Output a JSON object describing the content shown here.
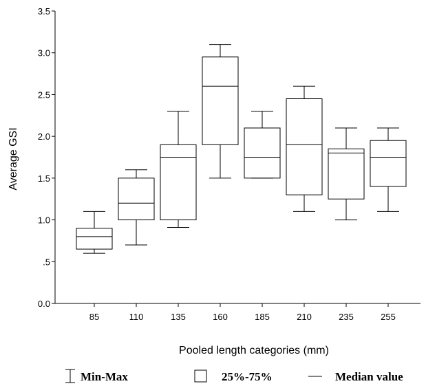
{
  "chart_data": {
    "type": "box",
    "xlabel": "Pooled length categories (mm)",
    "ylabel": "Average GSI",
    "ylim": [
      0,
      3.5
    ],
    "yticks": [
      {
        "value": 0.0,
        "label": "0.0"
      },
      {
        "value": 0.5,
        "label": ".5"
      },
      {
        "value": 1.0,
        "label": "1.0"
      },
      {
        "value": 1.5,
        "label": "1.5"
      },
      {
        "value": 2.0,
        "label": "2.0"
      },
      {
        "value": 2.5,
        "label": "2.5"
      },
      {
        "value": 3.0,
        "label": "3.0"
      },
      {
        "value": 3.5,
        "label": "3.5"
      }
    ],
    "categories": [
      "85",
      "110",
      "135",
      "160",
      "185",
      "210",
      "235",
      "255"
    ],
    "boxes": [
      {
        "category": "85",
        "min": 0.6,
        "q1": 0.65,
        "median": 0.8,
        "q3": 0.9,
        "max": 1.1
      },
      {
        "category": "110",
        "min": 0.7,
        "q1": 1.0,
        "median": 1.2,
        "q3": 1.5,
        "max": 1.6
      },
      {
        "category": "135",
        "min": 0.91,
        "q1": 1.0,
        "median": 1.75,
        "q3": 1.9,
        "max": 2.3
      },
      {
        "category": "160",
        "min": 1.5,
        "q1": 1.9,
        "median": 2.6,
        "q3": 2.95,
        "max": 3.1
      },
      {
        "category": "185",
        "min": 1.5,
        "q1": 1.5,
        "median": 1.75,
        "q3": 2.1,
        "max": 2.3
      },
      {
        "category": "210",
        "min": 1.1,
        "q1": 1.3,
        "median": 1.9,
        "q3": 2.45,
        "max": 2.6
      },
      {
        "category": "235",
        "min": 1.0,
        "q1": 1.25,
        "median": 1.8,
        "q3": 1.85,
        "max": 2.1
      },
      {
        "category": "255",
        "min": 1.1,
        "q1": 1.4,
        "median": 1.75,
        "q3": 1.95,
        "max": 2.1
      }
    ],
    "legend": {
      "placement": "bottom",
      "items": [
        {
          "symbol": "whisker",
          "label": "Min-Max"
        },
        {
          "symbol": "box",
          "label": "25%-75%"
        },
        {
          "symbol": "line",
          "label": "Median value"
        }
      ]
    },
    "grid": false
  }
}
